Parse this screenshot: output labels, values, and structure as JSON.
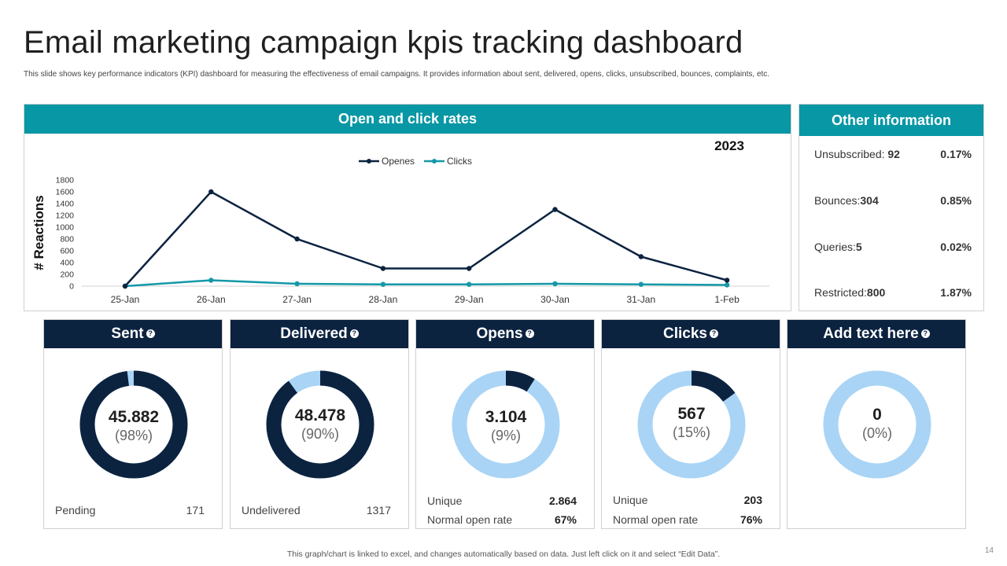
{
  "header": {
    "title": "Email marketing campaign kpis tracking dashboard",
    "subtitle": "This slide shows key performance indicators (KPI) dashboard for measuring the effectiveness of email campaigns. It provides information about sent, delivered, opens, clicks, unsubscribed, bounces, complaints, etc."
  },
  "chart_panel": {
    "title": "Open and click rates"
  },
  "chart_data": {
    "type": "line",
    "title": "2023",
    "xlabel": "",
    "ylabel": "# Reactions",
    "categories": [
      "25-Jan",
      "26-Jan",
      "27-Jan",
      "28-Jan",
      "29-Jan",
      "30-Jan",
      "31-Jan",
      "1-Feb"
    ],
    "series": [
      {
        "name": "Openes",
        "color": "#0c2340",
        "values": [
          0,
          1600,
          800,
          300,
          300,
          1300,
          500,
          100
        ]
      },
      {
        "name": "Clicks",
        "color": "#1498a8",
        "values": [
          0,
          100,
          40,
          30,
          30,
          40,
          30,
          20
        ]
      }
    ],
    "ylim": [
      0,
      1800
    ],
    "yticks": [
      0,
      200,
      400,
      600,
      800,
      1000,
      1200,
      1400,
      1600,
      1800
    ],
    "legend": "top-center",
    "grid": false
  },
  "other_info": {
    "title": "Other information",
    "rows": [
      {
        "label": "Unsubscribed: ",
        "value": "92",
        "pct": "0.17%"
      },
      {
        "label": "Bounces:",
        "value": "304",
        "pct": "0.85%"
      },
      {
        "label": "Queries:",
        "value": "5",
        "pct": "0.02%"
      },
      {
        "label": "Restricted:",
        "value": "800",
        "pct": "1.87%"
      }
    ]
  },
  "cards": [
    {
      "title": "Sent",
      "value": "45.882",
      "pct": "(98%)",
      "fraction": 0.98,
      "ring_color": "#0c2340",
      "rest_color": "#a9d4f5",
      "foot": [
        {
          "label": "Pending",
          "value": "171"
        }
      ]
    },
    {
      "title": "Delivered",
      "value": "48.478",
      "pct": "(90%)",
      "fraction": 0.9,
      "ring_color": "#0c2340",
      "rest_color": "#a9d4f5",
      "foot": [
        {
          "label": "Undelivered",
          "value": "1317"
        }
      ]
    },
    {
      "title": "Opens",
      "value": "3.104",
      "pct": "(9%)",
      "fraction": 0.09,
      "ring_color": "#0c2340",
      "rest_color": "#a9d4f5",
      "foot": [
        {
          "label": "Unique",
          "value": "2.864"
        },
        {
          "label": "Normal open rate",
          "value": "67%"
        }
      ]
    },
    {
      "title": "Clicks",
      "value": "567",
      "pct": "(15%)",
      "fraction": 0.15,
      "ring_color": "#0c2340",
      "rest_color": "#a9d4f5",
      "foot": [
        {
          "label": "Unique",
          "value": "203"
        },
        {
          "label": "Normal open rate",
          "value": "76%"
        }
      ]
    },
    {
      "title": "Add text here",
      "value": "0",
      "pct": "(0%)",
      "fraction": 0,
      "ring_color": "#0c2340",
      "rest_color": "#a9d4f5",
      "foot": []
    }
  ],
  "footer": {
    "note": "This graph/chart is linked to excel,  and changes automatically based on data. Just left click on it and select “Edit Data”.",
    "page_number": "14"
  }
}
